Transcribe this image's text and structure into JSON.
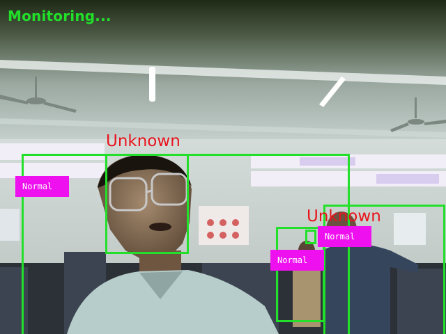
{
  "overlay": {
    "status": "Monitoring...",
    "status_color": "#22e02a",
    "box_color": "#22e02a",
    "face_label_color": "#e8141c",
    "pose_tag_color": "#ee10ee"
  },
  "persons": [
    {
      "pose_label": "Normal"
    },
    {
      "pose_label": "Normal"
    },
    {
      "pose_label": "Normal"
    }
  ],
  "faces": [
    {
      "identity": "Unknown"
    },
    {
      "identity": "Unknown"
    }
  ]
}
